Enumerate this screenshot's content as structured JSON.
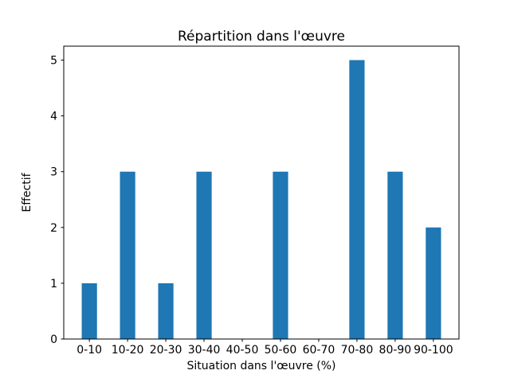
{
  "figure": {
    "background": "#ffffff"
  },
  "chart_data": {
    "type": "bar",
    "title": "Répartition dans l'œuvre",
    "xlabel": "Situation dans l'œuvre (%)",
    "ylabel": "Effectif",
    "categories": [
      "0-10",
      "10-20",
      "20-30",
      "30-40",
      "40-50",
      "50-60",
      "60-70",
      "70-80",
      "80-90",
      "90-100"
    ],
    "values": [
      1,
      3,
      1,
      3,
      0,
      3,
      0,
      5,
      3,
      2
    ],
    "yticks": [
      0,
      1,
      2,
      3,
      4,
      5
    ],
    "ylim": [
      0,
      5.25
    ],
    "bar_width_fraction": 0.4,
    "bar_color": "#1f77b4",
    "axis_color": "#000000",
    "text_color": "#000000",
    "grid": false,
    "legend": null
  }
}
